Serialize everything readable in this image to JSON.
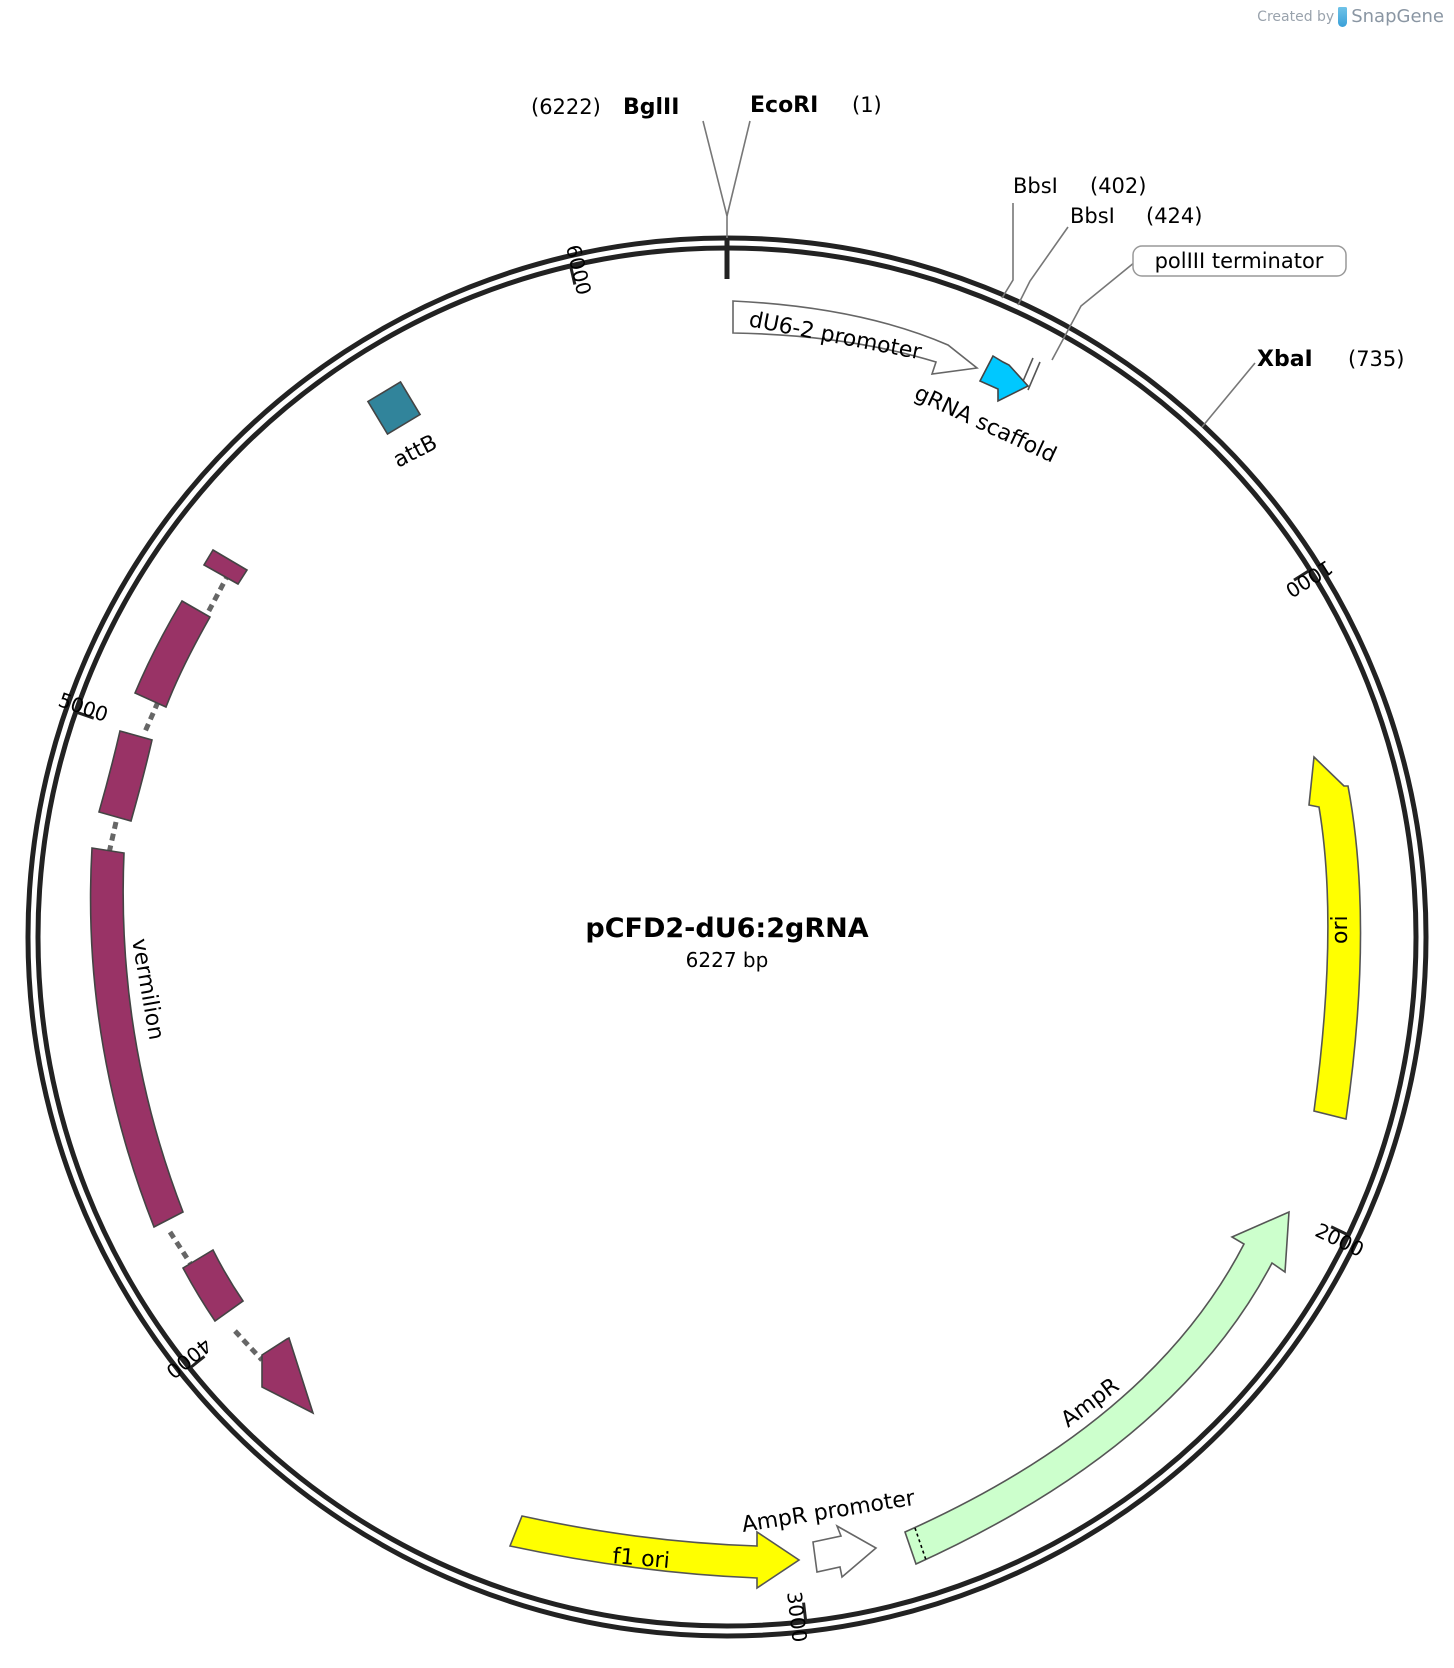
{
  "credit": {
    "prefix": "Created by",
    "brand": "SnapGene"
  },
  "plasmid": {
    "name": "pCFD2-dU6:2gRNA",
    "size_label": "6227 bp",
    "length": 6227
  },
  "ticks": [
    {
      "pos": 1000,
      "label": "1000"
    },
    {
      "pos": 2000,
      "label": "2000"
    },
    {
      "pos": 3000,
      "label": "3000"
    },
    {
      "pos": 4000,
      "label": "4000"
    },
    {
      "pos": 5000,
      "label": "5000"
    },
    {
      "pos": 6000,
      "label": "6000"
    }
  ],
  "sites": [
    {
      "name": "EcoRI",
      "coord": "(1)",
      "pos": 1,
      "bold": true
    },
    {
      "name": "BglII",
      "coord": "(6222)",
      "pos": 6222,
      "bold": true
    },
    {
      "name": "BbsI",
      "coord": "(402)",
      "pos": 402,
      "bold": false
    },
    {
      "name": "BbsI",
      "coord": "(424)",
      "pos": 424,
      "bold": false
    },
    {
      "name": "XbaI",
      "coord": "(735)",
      "pos": 735,
      "bold": true
    }
  ],
  "features": [
    {
      "name": "dU6-2 promoter",
      "color": "#ffffff"
    },
    {
      "name": "gRNA scaffold",
      "color": "#00c8ff"
    },
    {
      "name": "polIII terminator",
      "color": "#ffffff"
    },
    {
      "name": "ori",
      "color": "#ffff00"
    },
    {
      "name": "AmpR",
      "color": "#ccffcc"
    },
    {
      "name": "AmpR promoter",
      "color": "#ffffff"
    },
    {
      "name": "f1 ori",
      "color": "#ffff00"
    },
    {
      "name": "vermilion",
      "color": "#993366"
    },
    {
      "name": "attB",
      "color": "#31849b"
    }
  ]
}
